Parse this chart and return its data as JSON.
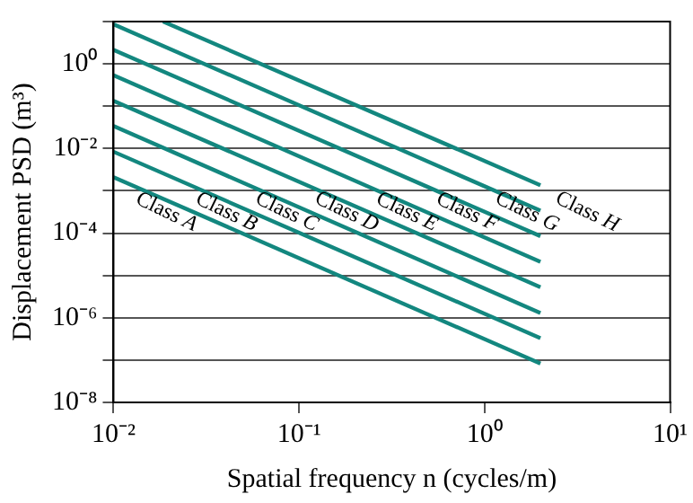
{
  "chart_data": {
    "type": "line",
    "xlabel": "Spatial frequency n (cycles/m)",
    "ylabel": "Displacement PSD (m³)",
    "log": "xy",
    "grid": "y",
    "marker": "none",
    "line_style": "solid",
    "legend": false,
    "xlim": [
      0.01,
      10
    ],
    "xticks": [
      {
        "value": 0.01,
        "label": "10⁻²"
      },
      {
        "value": 0.1,
        "label": "10⁻¹"
      },
      {
        "value": 1,
        "label": "10⁰"
      },
      {
        "value": 10,
        "label": "10¹"
      }
    ],
    "ylim": [
      1e-08,
      10
    ],
    "yticks": [
      {
        "value": 1e-08,
        "label": "10⁻⁸"
      },
      {
        "value": 1e-07,
        "label": null
      },
      {
        "value": 1e-06,
        "label": "10⁻⁶"
      },
      {
        "value": 1e-05,
        "label": null
      },
      {
        "value": 0.0001,
        "label": "10⁻⁴"
      },
      {
        "value": 0.001,
        "label": null
      },
      {
        "value": 0.01,
        "label": "10⁻²"
      },
      {
        "value": 0.1,
        "label": null
      },
      {
        "value": 1,
        "label": "10⁰"
      },
      {
        "value": 10,
        "label": null
      }
    ],
    "series": [
      {
        "color": "#13877f",
        "x": [
          0.01,
          2
        ],
        "values": [
          0.0021,
          8.3e-08
        ]
      },
      {
        "color": "#13877f",
        "x": [
          0.01,
          2
        ],
        "values": [
          0.0084,
          3.3e-07
        ]
      },
      {
        "color": "#13877f",
        "x": [
          0.01,
          2
        ],
        "values": [
          0.034,
          1.3e-06
        ]
      },
      {
        "color": "#13877f",
        "x": [
          0.01,
          2
        ],
        "values": [
          0.134,
          5.3e-06
        ]
      },
      {
        "color": "#13877f",
        "x": [
          0.01,
          2
        ],
        "values": [
          0.54,
          2.1e-05
        ]
      },
      {
        "color": "#13877f",
        "x": [
          0.01,
          2
        ],
        "values": [
          2.15,
          8.5e-05
        ]
      },
      {
        "color": "#13877f",
        "x": [
          0.01,
          2
        ],
        "values": [
          8.6,
          0.00034
        ]
      },
      {
        "color": "#13877f",
        "x": [
          0.0185,
          2
        ],
        "values": [
          10,
          0.00136
        ]
      }
    ],
    "annotations": [
      "Class A",
      "Class B",
      "Class C",
      "Class D",
      "Class E",
      "Class F",
      "Class G",
      "Class H"
    ]
  }
}
